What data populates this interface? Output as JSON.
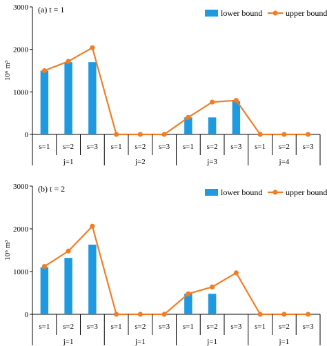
{
  "chart_data": [
    {
      "type": "bar",
      "panel_label": "(a) t = 1",
      "ylabel": "10⁶ m³",
      "ylim": [
        0,
        3000
      ],
      "yticks": [
        0,
        1000,
        2000,
        3000
      ],
      "categories": [
        "s=1",
        "s=2",
        "s=3",
        "s=1",
        "s=2",
        "s=3",
        "s=1",
        "s=2",
        "s=3",
        "s=1",
        "s=2",
        "s=3"
      ],
      "groups": [
        "j=1",
        "j=2",
        "j=3",
        "j=4"
      ],
      "series": [
        {
          "name": "lower bound",
          "kind": "bar",
          "color": "#1f9ae0",
          "values": [
            1500,
            1700,
            1700,
            0,
            0,
            0,
            400,
            400,
            780,
            0,
            0,
            0
          ]
        },
        {
          "name": "upper bound",
          "kind": "line",
          "color": "#f07e26",
          "values": [
            1500,
            1720,
            2040,
            0,
            0,
            0,
            400,
            760,
            800,
            0,
            0,
            0
          ]
        }
      ],
      "legend": "top-right"
    },
    {
      "type": "bar",
      "panel_label": "(b) t = 2",
      "ylabel": "10⁶ m³",
      "ylim": [
        0,
        3000
      ],
      "yticks": [
        0,
        1000,
        2000,
        3000
      ],
      "categories": [
        "s=1",
        "s=2",
        "s=3",
        "s=1",
        "s=2",
        "s=3",
        "s=1",
        "s=2",
        "s=3",
        "s=1",
        "s=2",
        "s=3"
      ],
      "groups": [
        "j=1",
        "j=1",
        "j=1",
        "j=1"
      ],
      "series": [
        {
          "name": "lower bound",
          "kind": "bar",
          "color": "#1f9ae0",
          "values": [
            1100,
            1320,
            1630,
            0,
            0,
            0,
            480,
            480,
            0,
            0,
            0,
            0
          ]
        },
        {
          "name": "upper bound",
          "kind": "line",
          "color": "#f07e26",
          "values": [
            1120,
            1480,
            2060,
            0,
            0,
            0,
            480,
            640,
            970,
            0,
            0,
            0
          ]
        }
      ],
      "legend": "top-right"
    }
  ]
}
